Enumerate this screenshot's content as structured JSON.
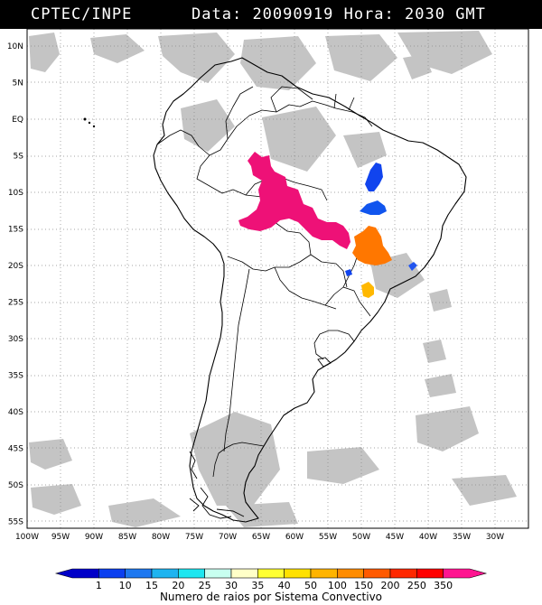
{
  "header": {
    "agency": "CPTEC/INPE",
    "data_label": "Data:",
    "date": "20090919",
    "hora_label": "Hora:",
    "time": "2030 GMT"
  },
  "map": {
    "lat_labels": [
      "10N",
      "5N",
      "EQ",
      "5S",
      "10S",
      "15S",
      "20S",
      "25S",
      "30S",
      "35S",
      "40S",
      "45S",
      "50S",
      "55S"
    ],
    "lon_labels": [
      "100W",
      "95W",
      "90W",
      "85W",
      "80W",
      "75W",
      "70W",
      "65W",
      "60W",
      "55W",
      "50W",
      "45W",
      "40W",
      "35W",
      "30W"
    ],
    "lat_values": [
      10,
      5,
      0,
      -5,
      -10,
      -15,
      -20,
      -25,
      -30,
      -35,
      -40,
      -45,
      -50,
      -55
    ],
    "lon_values": [
      -100,
      -95,
      -90,
      -85,
      -80,
      -75,
      -70,
      -65,
      -60,
      -55,
      -50,
      -45,
      -40,
      -35,
      -30
    ],
    "colors": {
      "cloud": "#c4c4c4",
      "land_outline": "#000000",
      "grid": "#888888"
    },
    "systems": [
      {
        "name": "central-west-cluster",
        "color": "#ee1177",
        "level": "350"
      },
      {
        "name": "east-blue-1",
        "color": "#1144ee",
        "level": "1"
      },
      {
        "name": "east-blue-2",
        "color": "#1155ee",
        "level": "1"
      },
      {
        "name": "orange-cluster",
        "color": "#ff7700",
        "level": "150"
      },
      {
        "name": "yellow-cluster",
        "color": "#ffb800",
        "level": "100"
      },
      {
        "name": "blue-small-1",
        "color": "#1144ee",
        "level": "1"
      },
      {
        "name": "blue-small-2",
        "color": "#2255ee",
        "level": "1"
      }
    ]
  },
  "colorbar": {
    "labels": [
      "1",
      "10",
      "15",
      "20",
      "25",
      "30",
      "35",
      "40",
      "50",
      "100",
      "150",
      "200",
      "250",
      "350"
    ],
    "colors": [
      "#0000c8",
      "#0b3ff0",
      "#1e78f0",
      "#1eb4f0",
      "#1ee6f0",
      "#c8fff0",
      "#ffffc8",
      "#ffff32",
      "#ffe100",
      "#ffb400",
      "#ff8c00",
      "#ff5a00",
      "#ff2800",
      "#ff0000",
      "#ff1490"
    ],
    "caption": "Numero de raios por Sistema Convectivo"
  }
}
